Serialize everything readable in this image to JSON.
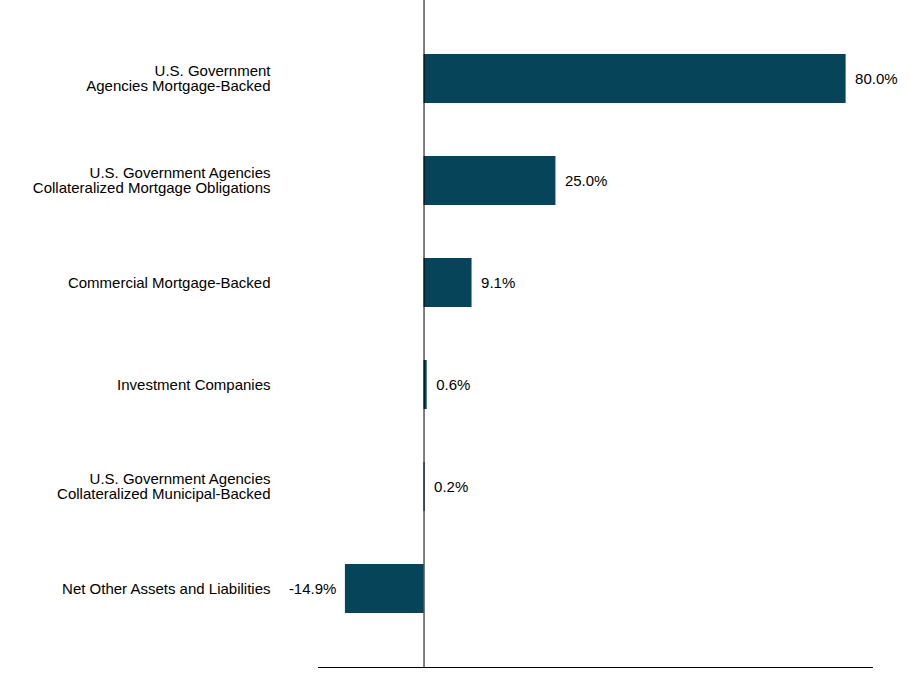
{
  "chart_data": {
    "type": "bar",
    "orientation": "horizontal",
    "categories": [
      "U.S. Government\nAgencies Mortgage-Backed",
      "U.S. Government Agencies\nCollateralized Mortgage Obligations",
      "Commercial Mortgage-Backed",
      "Investment Companies",
      "U.S. Government Agencies\nCollateralized Municipal-Backed",
      "Net Other Assets and Liabilities"
    ],
    "values": [
      80.0,
      25.0,
      9.1,
      0.6,
      0.2,
      -14.9
    ],
    "value_labels": [
      "80.0%",
      "25.0%",
      "9.1%",
      "0.6%",
      "0.2%",
      "-14.9%"
    ],
    "data_labels": true,
    "color": "#064559",
    "xlim": [
      -20,
      85
    ],
    "xticks": [],
    "tick_labels": "y",
    "grid": false
  }
}
